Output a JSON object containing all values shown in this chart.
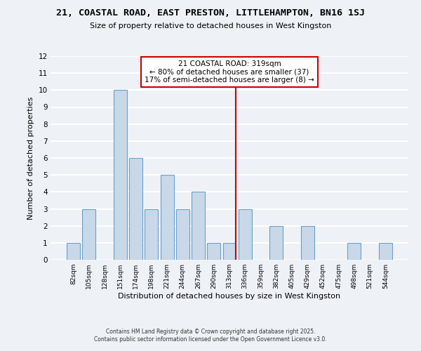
{
  "title": "21, COASTAL ROAD, EAST PRESTON, LITTLEHAMPTON, BN16 1SJ",
  "subtitle": "Size of property relative to detached houses in West Kingston",
  "xlabel": "Distribution of detached houses by size in West Kingston",
  "ylabel": "Number of detached properties",
  "bar_labels": [
    "82sqm",
    "105sqm",
    "128sqm",
    "151sqm",
    "174sqm",
    "198sqm",
    "221sqm",
    "244sqm",
    "267sqm",
    "290sqm",
    "313sqm",
    "336sqm",
    "359sqm",
    "382sqm",
    "405sqm",
    "429sqm",
    "452sqm",
    "475sqm",
    "498sqm",
    "521sqm",
    "544sqm"
  ],
  "bar_values": [
    1,
    3,
    0,
    10,
    6,
    3,
    5,
    3,
    4,
    1,
    1,
    3,
    0,
    2,
    0,
    2,
    0,
    0,
    1,
    0,
    1
  ],
  "bar_color": "#c8d8e8",
  "bar_edge_color": "#6aa0c8",
  "background_color": "#eef2f7",
  "grid_color": "#ffffff",
  "ylim": [
    0,
    12
  ],
  "yticks": [
    0,
    1,
    2,
    3,
    4,
    5,
    6,
    7,
    8,
    9,
    10,
    11,
    12
  ],
  "annotation_title": "21 COASTAL ROAD: 319sqm",
  "annotation_line1": "← 80% of detached houses are smaller (37)",
  "annotation_line2": "17% of semi-detached houses are larger (8) →",
  "vline_color": "#cc0000",
  "annotation_box_edge_color": "#cc0000",
  "footer_line1": "Contains HM Land Registry data © Crown copyright and database right 2025.",
  "footer_line2": "Contains public sector information licensed under the Open Government Licence v3.0."
}
